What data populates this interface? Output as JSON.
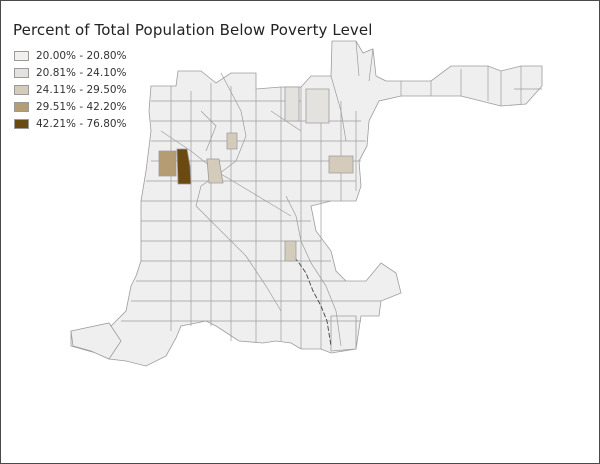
{
  "map": {
    "title": "Percent of Total Population Below Poverty Level",
    "legend": [
      {
        "label": "20.00% - 20.80%",
        "color": "#f1f0ee"
      },
      {
        "label": "20.81% - 24.10%",
        "color": "#e4e2de"
      },
      {
        "label": "24.11% - 29.50%",
        "color": "#d5cbba"
      },
      {
        "label": "29.51% - 42.20%",
        "color": "#b59c72"
      },
      {
        "label": "42.21% - 76.80%",
        "color": "#6b4a12"
      }
    ]
  }
}
